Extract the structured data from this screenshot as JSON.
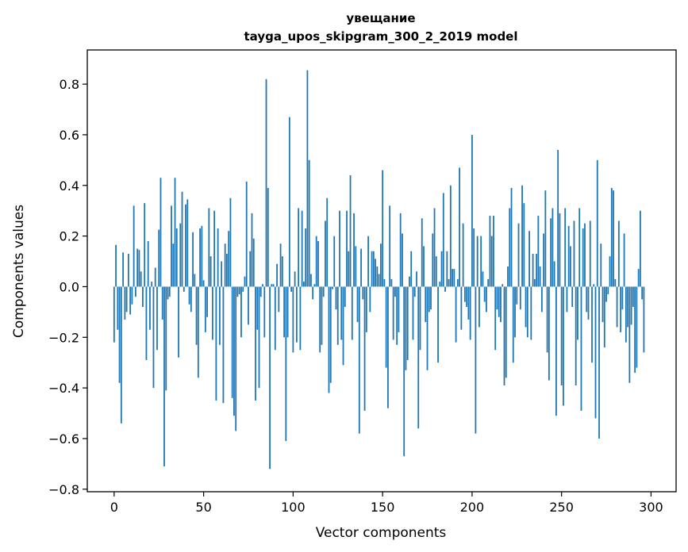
{
  "chart_data": {
    "type": "bar",
    "title": "увещание",
    "subtitle": "tayga_upos_skipgram_300_2_2019 model",
    "xlabel": "Vector components",
    "ylabel": "Components values",
    "xlim": [
      -15,
      314
    ],
    "ylim": [
      -0.81,
      0.935
    ],
    "xticks": [
      0,
      50,
      100,
      150,
      200,
      250,
      300
    ],
    "xtick_labels": [
      "0",
      "50",
      "100",
      "150",
      "200",
      "250",
      "300"
    ],
    "yticks": [
      -0.8,
      -0.6,
      -0.4,
      -0.2,
      0.0,
      0.2,
      0.4,
      0.6,
      0.8
    ],
    "ytick_labels": [
      "−0.8",
      "−0.6",
      "−0.4",
      "−0.2",
      "0.0",
      "0.2",
      "0.4",
      "0.6",
      "0.8"
    ],
    "grid": false,
    "color": "#1f77b4",
    "values": [
      -0.22,
      0.165,
      -0.17,
      -0.38,
      -0.54,
      0.135,
      -0.13,
      -0.1,
      0.13,
      -0.11,
      -0.07,
      0.32,
      -0.04,
      0.15,
      0.145,
      0.06,
      -0.08,
      0.33,
      -0.29,
      0.18,
      -0.17,
      0.02,
      -0.4,
      0.075,
      -0.25,
      0.225,
      0.43,
      -0.13,
      -0.71,
      -0.41,
      -0.05,
      -0.04,
      0.32,
      0.17,
      0.43,
      0.23,
      -0.28,
      0.25,
      0.375,
      -0.02,
      0.325,
      0.345,
      -0.07,
      -0.1,
      0.215,
      0.05,
      -0.23,
      -0.36,
      0.23,
      0.24,
      0.025,
      -0.18,
      -0.12,
      0.31,
      0.12,
      -0.21,
      0.3,
      -0.45,
      0.23,
      -0.23,
      0.1,
      -0.46,
      0.17,
      0.13,
      0.22,
      0.35,
      -0.44,
      -0.51,
      -0.57,
      -0.04,
      -0.03,
      -0.2,
      -0.02,
      0.04,
      0.415,
      -0.15,
      0.14,
      0.29,
      0.19,
      -0.45,
      -0.17,
      -0.4,
      -0.04,
      0.01,
      -0.2,
      0.82,
      0.39,
      -0.72,
      0.01,
      0.01,
      -0.25,
      0.09,
      -0.1,
      0.17,
      0.12,
      -0.2,
      -0.61,
      -0.2,
      0.67,
      -0.02,
      -0.26,
      0.06,
      -0.22,
      0.31,
      -0.25,
      0.3,
      0.02,
      0.23,
      0.855,
      0.5,
      0.05,
      -0.05,
      0.01,
      0.2,
      0.18,
      -0.26,
      -0.23,
      -0.04,
      0.26,
      0.35,
      -0.42,
      -0.38,
      -0.01,
      0.2,
      -0.09,
      -0.23,
      0.3,
      -0.21,
      -0.31,
      -0.08,
      0.3,
      0.14,
      0.44,
      -0.21,
      0.29,
      0.16,
      -0.14,
      -0.58,
      0.15,
      -0.05,
      -0.49,
      -0.18,
      0.2,
      -0.1,
      0.14,
      0.14,
      0.11,
      0.08,
      0.05,
      0.17,
      0.46,
      0.03,
      -0.32,
      -0.48,
      0.32,
      0.03,
      -0.21,
      -0.04,
      -0.23,
      -0.18,
      0.29,
      0.21,
      -0.67,
      -0.33,
      -0.29,
      0.04,
      0.14,
      -0.21,
      -0.04,
      0.06,
      -0.56,
      -0.25,
      0.27,
      0.16,
      -0.14,
      -0.33,
      -0.1,
      -0.09,
      0.21,
      0.31,
      0.12,
      -0.3,
      0.02,
      0.14,
      0.37,
      -0.02,
      0.14,
      0.03,
      0.4,
      0.07,
      0.07,
      -0.22,
      0.03,
      0.47,
      -0.17,
      0.25,
      -0.06,
      -0.08,
      -0.13,
      -0.21,
      0.6,
      0.23,
      -0.58,
      0.2,
      -0.16,
      0.2,
      0.06,
      -0.06,
      -0.1,
      0.03,
      0.28,
      0.2,
      0.28,
      -0.25,
      -0.09,
      -0.12,
      -0.14,
      0.01,
      -0.39,
      -0.36,
      0.08,
      0.31,
      0.39,
      -0.3,
      -0.2,
      -0.07,
      0.25,
      -0.09,
      0.4,
      0.33,
      -0.16,
      -0.2,
      0.22,
      -0.21,
      0.13,
      0.03,
      0.13,
      0.28,
      0.08,
      -0.1,
      0.21,
      0.38,
      -0.26,
      -0.37,
      0.27,
      0.31,
      0.1,
      -0.51,
      0.54,
      0.29,
      -0.39,
      -0.47,
      0.31,
      -0.1,
      0.24,
      0.16,
      -0.08,
      0.26,
      -0.39,
      -0.21,
      0.31,
      -0.49,
      0.23,
      0.25,
      -0.1,
      -0.13,
      0.26,
      -0.3,
      0.01,
      -0.52,
      0.5,
      -0.6,
      0.17,
      -0.14,
      -0.24,
      -0.06,
      -0.03,
      0.12,
      0.39,
      0.38,
      0.03,
      -0.16,
      0.26,
      -0.18,
      -0.09,
      0.21,
      -0.22,
      -0.16,
      -0.38,
      -0.15,
      -0.08,
      -0.34,
      -0.32,
      0.07,
      0.3,
      -0.05,
      -0.26
    ]
  }
}
